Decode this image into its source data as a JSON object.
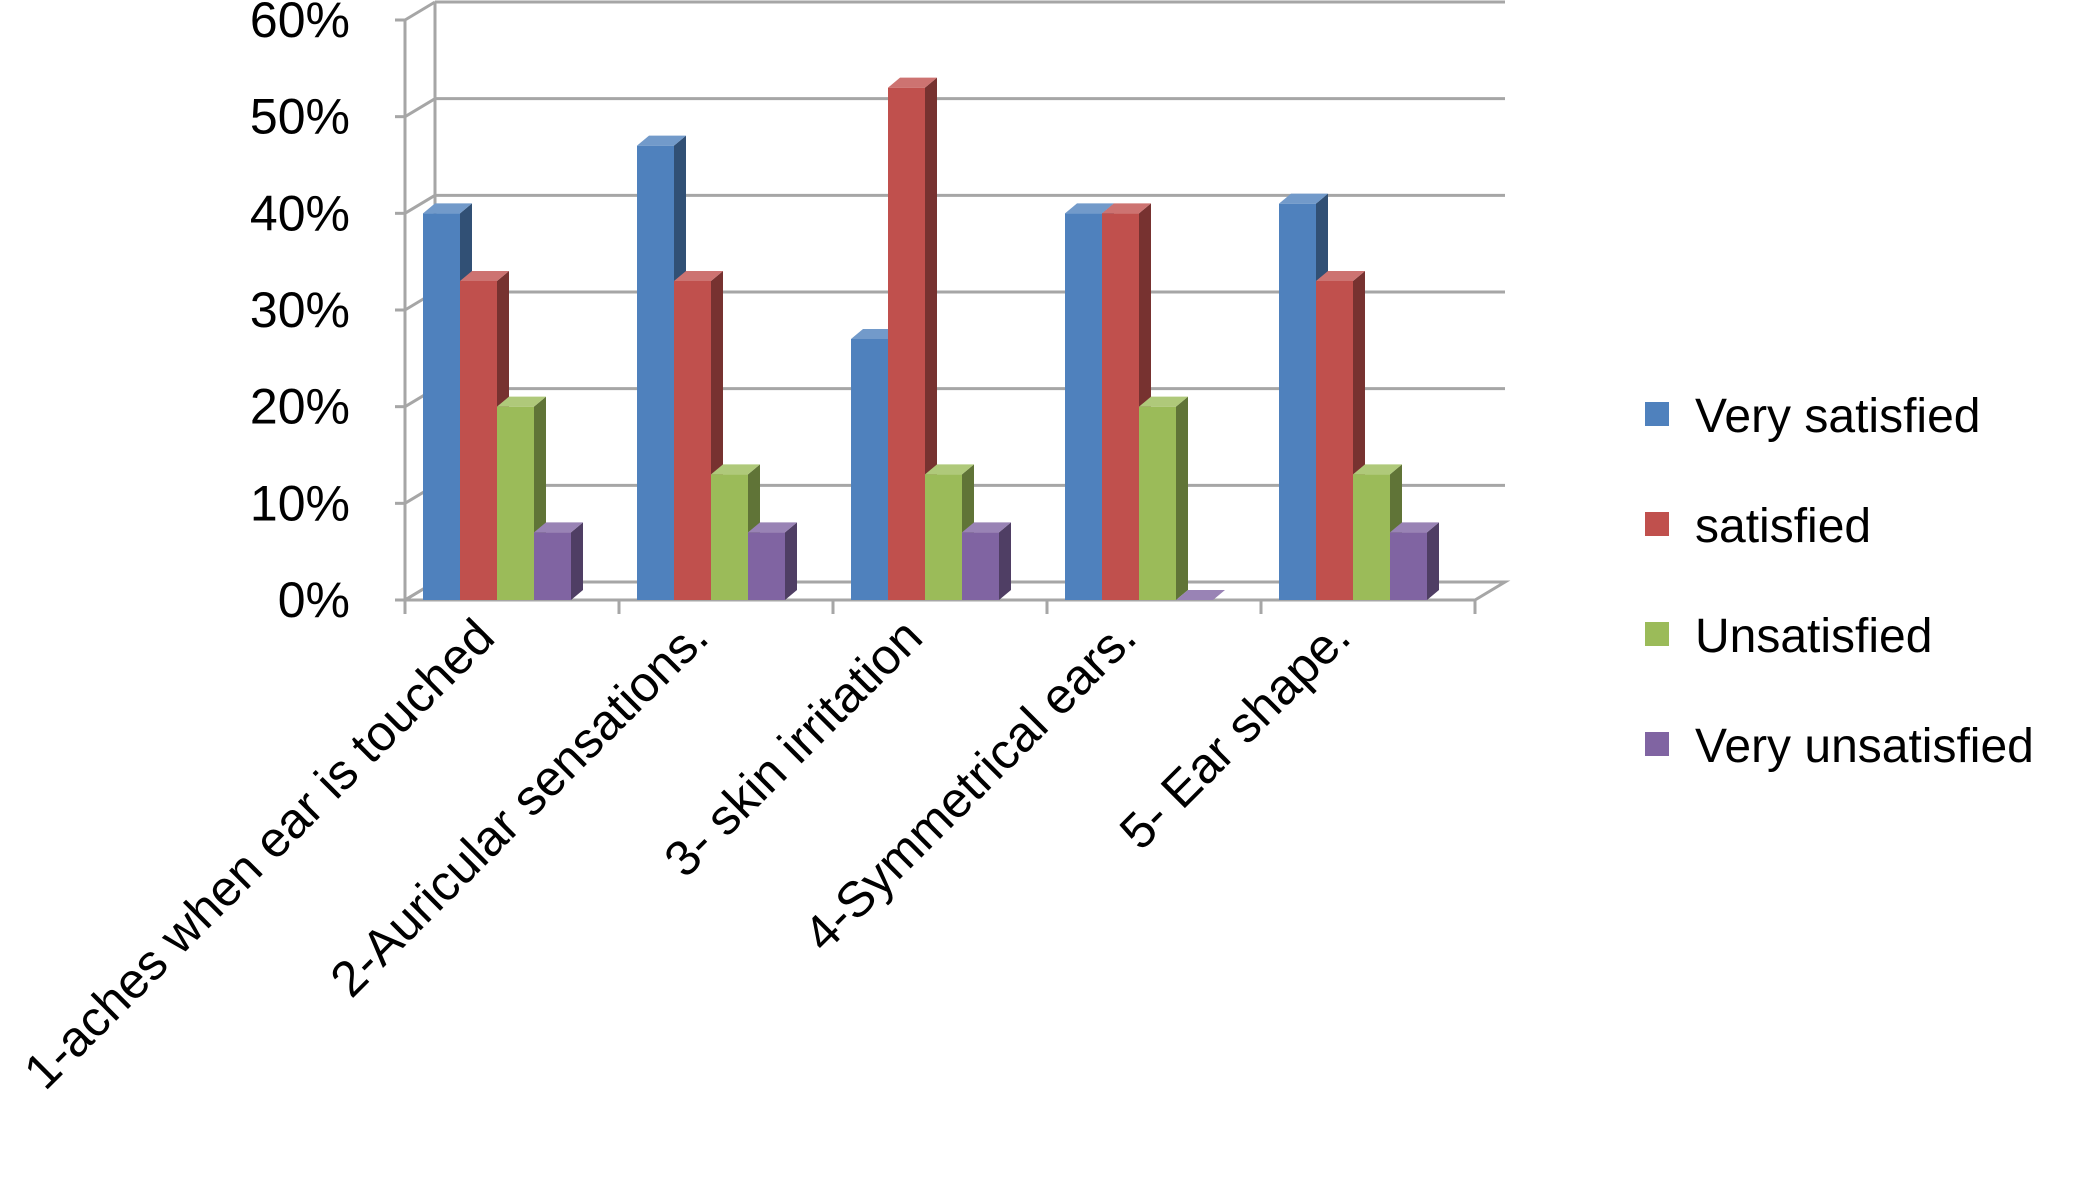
{
  "chart_data": {
    "type": "bar",
    "title": "",
    "xlabel": "",
    "ylabel": "",
    "ylim": [
      0,
      0.6
    ],
    "yticks": [
      0,
      0.1,
      0.2,
      0.3,
      0.4,
      0.5,
      0.6
    ],
    "ytick_labels": [
      "0%",
      "10%",
      "20%",
      "30%",
      "40%",
      "50%",
      "60%"
    ],
    "grid": true,
    "legend_position": "right",
    "categories": [
      "1-aches when ear is touched",
      "2-Auricular sensations.",
      "3- skin irritation",
      "4-Symmetrical ears.",
      "5- Ear shape."
    ],
    "series": [
      {
        "name": "Very satisfied",
        "color": "#4F81BD",
        "values": [
          0.4,
          0.47,
          0.27,
          0.4,
          0.41
        ]
      },
      {
        "name": "satisfied",
        "color": "#C0504D",
        "values": [
          0.33,
          0.33,
          0.53,
          0.4,
          0.33
        ]
      },
      {
        "name": "Unsatisfied",
        "color": "#9BBB59",
        "values": [
          0.2,
          0.13,
          0.13,
          0.2,
          0.13
        ]
      },
      {
        "name": "Very unsatisfied",
        "color": "#8064A2",
        "values": [
          0.07,
          0.07,
          0.07,
          0.0,
          0.07
        ]
      }
    ]
  }
}
